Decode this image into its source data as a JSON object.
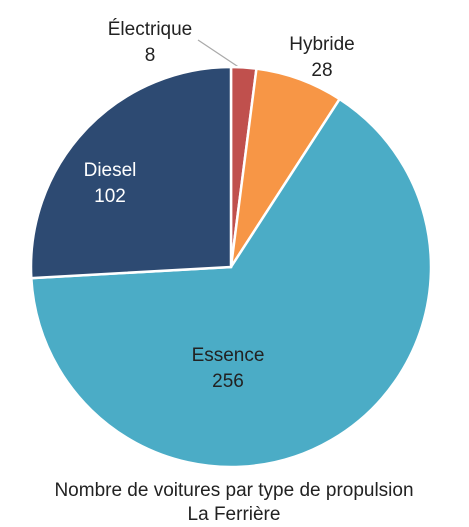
{
  "chart_data": {
    "type": "pie",
    "title": "Nombre de voitures par type de propulsion",
    "subtitle": "La Ferrière",
    "categories": [
      "Électrique",
      "Hybride",
      "Essence",
      "Diesel"
    ],
    "values": [
      8,
      28,
      256,
      102
    ],
    "colors": [
      "#c0504d",
      "#f79646",
      "#4bacc6",
      "#2d4a72"
    ]
  }
}
